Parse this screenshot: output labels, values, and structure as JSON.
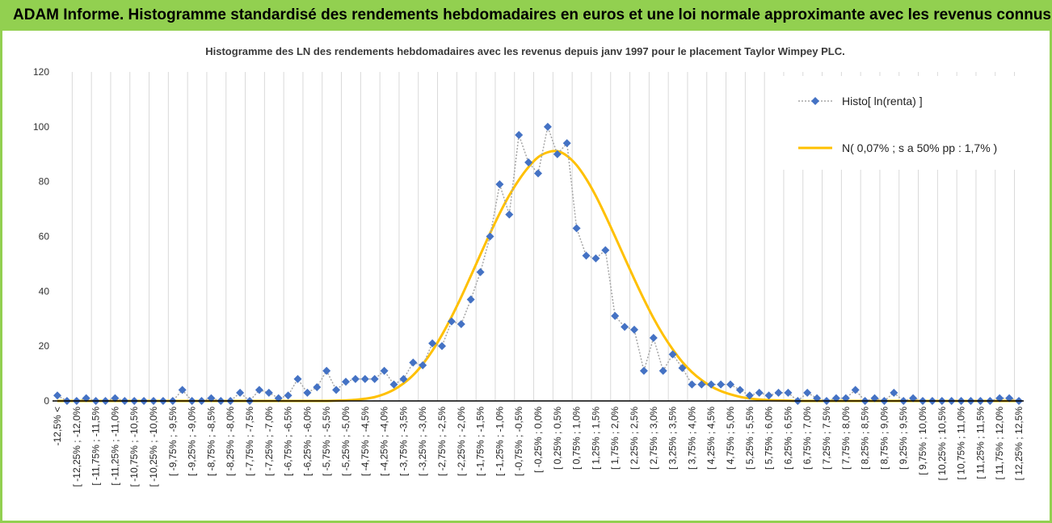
{
  "banner": {
    "title": "ADAM Informe. Histogramme standardisé des rendements hebdomadaires en euros et une loi normale approximante avec les revenus connus distribués"
  },
  "colors": {
    "banner_bg": "#92d050",
    "histo_series": "#4472c4",
    "histo_line": "#a6a6a6",
    "normal_curve": "#ffc000",
    "gridline": "#d9d9d9",
    "axis": "#000000"
  },
  "chart_data": {
    "type": "line",
    "title": "Histogramme des LN des rendements hebdomadaires avec les revenus depuis janv 1997 pour le placement Taylor Wimpey PLC.",
    "xlabel": "",
    "ylabel": "",
    "ylim": [
      0,
      120
    ],
    "yticks": [
      0,
      20,
      40,
      60,
      80,
      100,
      120
    ],
    "grid": {
      "vertical": true,
      "horizontal": false
    },
    "legend_position": "top-right",
    "categories": [
      "-12,5% <",
      "[ -12,25% ; -12,0%",
      "[ -11,75% ; -11,5%",
      "[ -11,25% ; -11,0%",
      "[ -10,75% ; -10,5%",
      "[ -10,25% ; -10,0%",
      "[ -9,75% ; -9,5%",
      "[ -9,25% ; -9,0%",
      "[ -8,75% ; -8,5%",
      "[ -8,25% ; -8,0%",
      "[ -7,75% ; -7,5%",
      "[ -7,25% ; -7,0%",
      "[ -6,75% ; -6,5%",
      "[ -6,25% ; -6,0%",
      "[ -5,75% ; -5,5%",
      "[ -5,25% ; -5,0%",
      "[ -4,75% ; -4,5%",
      "[ -4,25% ; -4,0%",
      "[ -3,75% ; -3,5%",
      "[ -3,25% ; -3,0%",
      "[ -2,75% ; -2,5%",
      "[ -2,25% ; -2,0%",
      "[ -1,75% ; -1,5%",
      "[ -1,25% ; -1,0%",
      "[ -0,75% ; -0,5%",
      "[ -0,25% ; 0,0%",
      "[ 0,25% ; 0,5%",
      "[ 0,75% ; 1,0%",
      "[ 1,25% ; 1,5%",
      "[ 1,75% ; 2,0%",
      "[ 2,25% ; 2,5%",
      "[ 2,75% ; 3,0%",
      "[ 3,25% ; 3,5%",
      "[ 3,75% ; 4,0%",
      "[ 4,25% ; 4,5%",
      "[ 4,75% ; 5,0%",
      "[ 5,25% ; 5,5%",
      "[ 5,75% ; 6,0%",
      "[ 6,25% ; 6,5%",
      "[ 6,75% ; 7,0%",
      "[ 7,25% ; 7,5%",
      "[ 7,75% ; 8,0%",
      "[ 8,25% ; 8,5%",
      "[ 8,75% ; 9,0%",
      "[ 9,25% ; 9,5%",
      "[ 9,75% ; 10,0%",
      "[ 10,25% ; 10,5%",
      "[ 10,75% ; 11,0%",
      "[ 11,25% ; 11,5%",
      "[ 11,75% ; 12,0%",
      "[ 12,25% ; 12,5%"
    ],
    "x": [
      -12.5,
      -12.25,
      -12.0,
      -11.75,
      -11.5,
      -11.25,
      -11.0,
      -10.75,
      -10.5,
      -10.25,
      -10.0,
      -9.75,
      -9.5,
      -9.25,
      -9.0,
      -8.75,
      -8.5,
      -8.25,
      -8.0,
      -7.75,
      -7.5,
      -7.25,
      -7.0,
      -6.75,
      -6.5,
      -6.25,
      -6.0,
      -5.75,
      -5.5,
      -5.25,
      -5.0,
      -4.75,
      -4.5,
      -4.25,
      -4.0,
      -3.75,
      -3.5,
      -3.25,
      -3.0,
      -2.75,
      -2.5,
      -2.25,
      -2.0,
      -1.75,
      -1.5,
      -1.25,
      -1.0,
      -0.75,
      -0.5,
      -0.25,
      0.0,
      0.25,
      0.5,
      0.75,
      1.0,
      1.25,
      1.5,
      1.75,
      2.0,
      2.25,
      2.5,
      2.75,
      3.0,
      3.25,
      3.5,
      3.75,
      4.0,
      4.25,
      4.5,
      4.75,
      5.0,
      5.25,
      5.5,
      5.75,
      6.0,
      6.25,
      6.5,
      6.75,
      7.0,
      7.25,
      7.5,
      7.75,
      8.0,
      8.25,
      8.5,
      8.75,
      9.0,
      9.25,
      9.5,
      9.75,
      10.0,
      10.25,
      10.5,
      10.75,
      11.0,
      11.25,
      11.5,
      11.75,
      12.0,
      12.25,
      12.5
    ],
    "series": [
      {
        "name": "Histo[ ln(renta) ]",
        "style": "markers-dotted",
        "values": [
          2,
          0,
          0,
          1,
          0,
          0,
          1,
          0,
          0,
          0,
          0,
          0,
          0,
          4,
          0,
          0,
          1,
          0,
          0,
          3,
          0,
          4,
          3,
          1,
          2,
          8,
          3,
          5,
          11,
          4,
          7,
          8,
          8,
          8,
          11,
          6,
          8,
          14,
          13,
          21,
          20,
          29,
          28,
          37,
          47,
          60,
          79,
          68,
          97,
          87,
          83,
          100,
          90,
          94,
          63,
          53,
          52,
          55,
          31,
          27,
          26,
          11,
          23,
          11,
          17,
          12,
          6,
          6,
          6,
          6,
          6,
          4,
          2,
          3,
          2,
          3,
          3,
          0,
          3,
          1,
          0,
          1,
          1,
          4,
          0,
          1,
          0,
          3,
          0,
          1,
          0,
          0,
          0,
          0,
          0,
          0,
          0,
          0,
          1,
          1,
          0
        ]
      },
      {
        "name": "N( 0,07% ; s a 50% pp : 1,7% )",
        "style": "smooth-line",
        "values": [
          0,
          0,
          0,
          0,
          0,
          0,
          0,
          0,
          0,
          0,
          0,
          0,
          0,
          0,
          0,
          0,
          0,
          0,
          0,
          0,
          0,
          0,
          0,
          0,
          0,
          0,
          0,
          0,
          0,
          0.1,
          0.2,
          0.4,
          0.8,
          1.4,
          2.5,
          4.1,
          6.4,
          9.4,
          13.4,
          18.3,
          24.1,
          30.7,
          37.9,
          45.6,
          53.4,
          61.1,
          68.4,
          75.0,
          80.6,
          85.3,
          88.9,
          90.7,
          91.1,
          89.4,
          86.0,
          81.0,
          74.8,
          67.6,
          60.0,
          52.2,
          44.5,
          37.1,
          30.2,
          24.1,
          18.8,
          14.2,
          10.5,
          7.6,
          5.3,
          3.6,
          2.4,
          1.5,
          0.9,
          0.5,
          0.3,
          0.2,
          0.1,
          0,
          0,
          0,
          0,
          0,
          0,
          0,
          0,
          0,
          0,
          0,
          0,
          0,
          0,
          0,
          0,
          0,
          0,
          0,
          0,
          0,
          0,
          0,
          0
        ]
      }
    ]
  }
}
